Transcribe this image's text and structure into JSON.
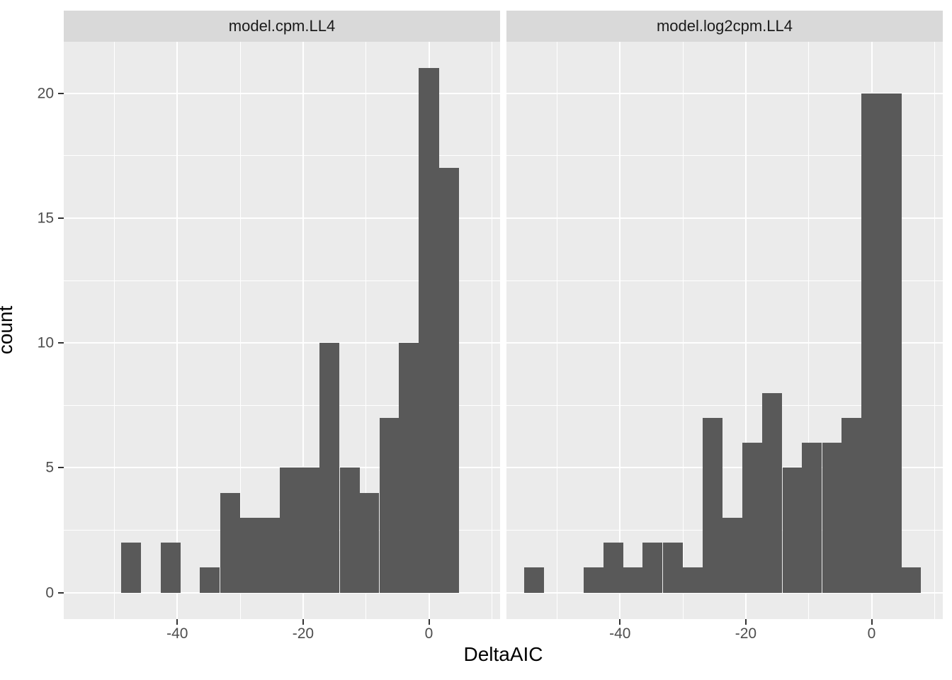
{
  "chart_data": {
    "type": "bar",
    "subtype": "faceted-histogram",
    "title": "",
    "xlabel": "DeltaAIC",
    "ylabel": "count",
    "facet_labels": [
      "model.cpm.LL4",
      "model.log2cpm.LL4"
    ],
    "binwidth": 3.16,
    "x_major_ticks": [
      -40,
      -20,
      0
    ],
    "x_minor_gridlines": [
      -50,
      -30,
      -10,
      10
    ],
    "y_major_ticks": [
      0,
      5,
      10,
      15,
      20
    ],
    "y_minor_gridlines": [
      2.5,
      7.5,
      12.5,
      17.5
    ],
    "xlim": [
      -58.1,
      11.4
    ],
    "ylim": [
      -1.05,
      22.05
    ],
    "grid": "on",
    "legend": "none",
    "series": [
      {
        "name": "model.cpm.LL4",
        "bins": [
          {
            "center": -47.4,
            "count": 2
          },
          {
            "center": -41.1,
            "count": 2
          },
          {
            "center": -34.8,
            "count": 1
          },
          {
            "center": -31.6,
            "count": 4
          },
          {
            "center": -28.4,
            "count": 3
          },
          {
            "center": -25.3,
            "count": 3
          },
          {
            "center": -22.1,
            "count": 5
          },
          {
            "center": -19.0,
            "count": 5
          },
          {
            "center": -15.8,
            "count": 10
          },
          {
            "center": -12.6,
            "count": 5
          },
          {
            "center": -9.5,
            "count": 4
          },
          {
            "center": -6.3,
            "count": 7
          },
          {
            "center": -3.2,
            "count": 10
          },
          {
            "center": 0.0,
            "count": 21
          },
          {
            "center": 3.2,
            "count": 17
          }
        ]
      },
      {
        "name": "model.log2cpm.LL4",
        "bins": [
          {
            "center": -53.7,
            "count": 1
          },
          {
            "center": -44.2,
            "count": 1
          },
          {
            "center": -41.1,
            "count": 2
          },
          {
            "center": -37.9,
            "count": 1
          },
          {
            "center": -34.8,
            "count": 2
          },
          {
            "center": -31.6,
            "count": 2
          },
          {
            "center": -28.4,
            "count": 1
          },
          {
            "center": -25.3,
            "count": 7
          },
          {
            "center": -22.1,
            "count": 3
          },
          {
            "center": -19.0,
            "count": 6
          },
          {
            "center": -15.8,
            "count": 8
          },
          {
            "center": -12.6,
            "count": 5
          },
          {
            "center": -9.5,
            "count": 6
          },
          {
            "center": -6.3,
            "count": 6
          },
          {
            "center": -3.2,
            "count": 7
          },
          {
            "center": 0.0,
            "count": 20
          },
          {
            "center": 3.2,
            "count": 20
          },
          {
            "center": 6.3,
            "count": 1
          }
        ]
      }
    ],
    "colors": {
      "bar_fill": "#595959",
      "panel_background": "#ebebeb",
      "strip_background": "#d9d9d9",
      "gridline": "#ffffff",
      "tick_mark": "#333333",
      "tick_text": "#4d4d4d",
      "axis_title_text": "#000000",
      "page_background": "#ffffff"
    }
  }
}
